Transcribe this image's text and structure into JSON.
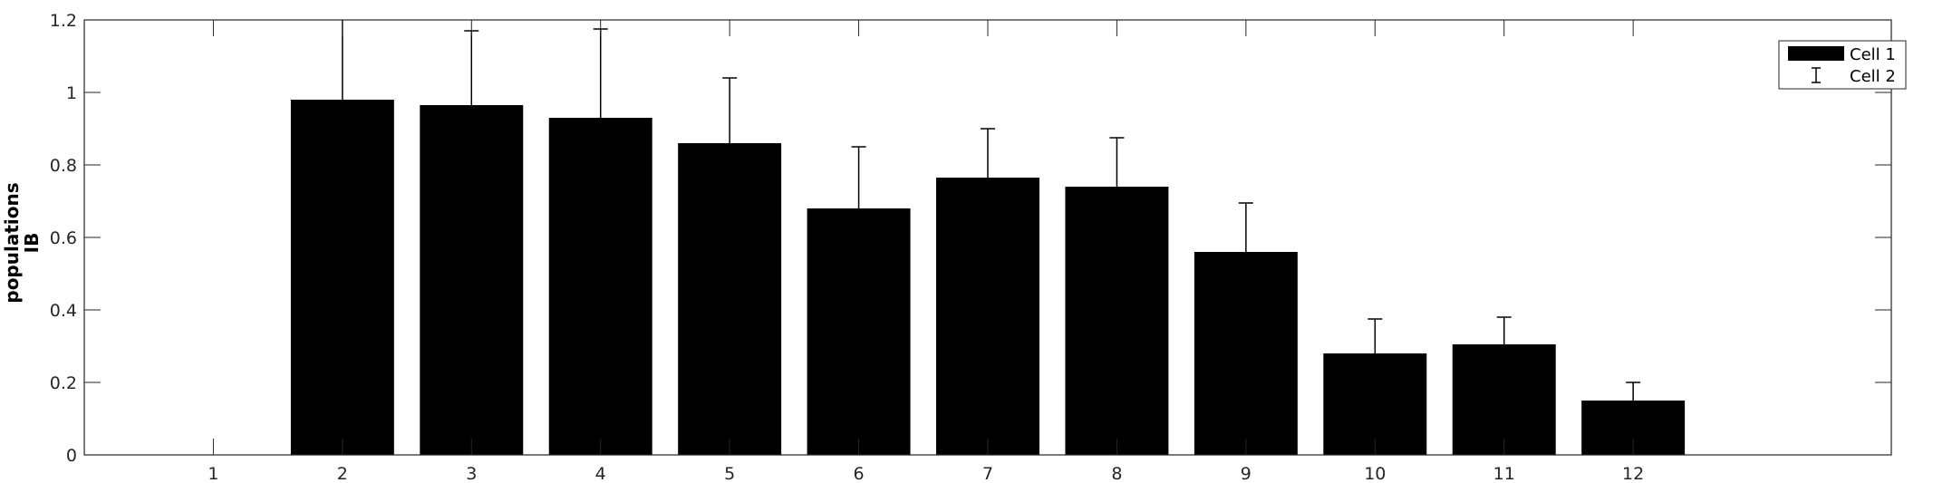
{
  "chart_data": {
    "type": "bar",
    "categories": [
      "1",
      "2",
      "3",
      "4",
      "5",
      "6",
      "7",
      "8",
      "9",
      "10",
      "11",
      "12"
    ],
    "series": [
      {
        "name": "Cell 1",
        "values": [
          0,
          0.98,
          0.965,
          0.93,
          0.86,
          0.68,
          0.765,
          0.74,
          0.56,
          0.28,
          0.305,
          0.15
        ]
      }
    ],
    "error_bars": {
      "name": "Cell 2",
      "upper": [
        0,
        0.27,
        0.205,
        0.245,
        0.18,
        0.17,
        0.135,
        0.135,
        0.135,
        0.095,
        0.075,
        0.05
      ]
    },
    "xlabel": "",
    "ylabel_lines": [
      "populations",
      "IB"
    ],
    "ylim": [
      0,
      1.2
    ],
    "yticks": [
      "0",
      "0.2",
      "0.4",
      "0.6",
      "0.8",
      "1",
      "1.2"
    ],
    "xlim": [
      0,
      14
    ],
    "grid": false,
    "legend_position": "top-right",
    "bar_color": "#000000"
  }
}
